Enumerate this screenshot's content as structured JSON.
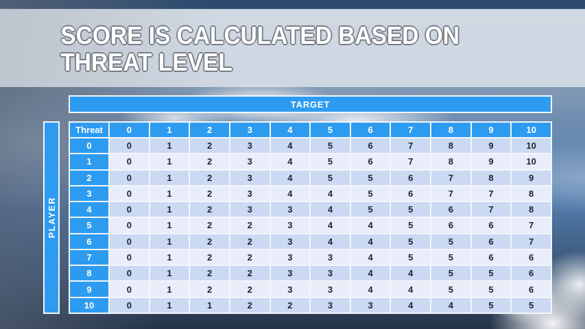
{
  "slide": {
    "title_line1": "SCORE IS CALCULATED BASED ON",
    "title_line2": "THREAT LEVEL"
  },
  "matrix": {
    "target_label": "TARGET",
    "player_label": "PLAYER",
    "corner_label": "Threat",
    "column_headers": [
      "0",
      "1",
      "2",
      "3",
      "4",
      "5",
      "6",
      "7",
      "8",
      "9",
      "10"
    ],
    "rows": [
      {
        "threat": "0",
        "values": [
          0,
          1,
          2,
          3,
          4,
          5,
          6,
          7,
          8,
          9,
          10
        ]
      },
      {
        "threat": "1",
        "values": [
          0,
          1,
          2,
          3,
          4,
          5,
          6,
          7,
          8,
          9,
          10
        ]
      },
      {
        "threat": "2",
        "values": [
          0,
          1,
          2,
          3,
          4,
          5,
          5,
          6,
          7,
          8,
          9
        ]
      },
      {
        "threat": "3",
        "values": [
          0,
          1,
          2,
          3,
          4,
          4,
          5,
          6,
          7,
          7,
          8
        ]
      },
      {
        "threat": "4",
        "values": [
          0,
          1,
          2,
          3,
          3,
          4,
          5,
          5,
          6,
          7,
          8
        ]
      },
      {
        "threat": "5",
        "values": [
          0,
          1,
          2,
          2,
          3,
          4,
          4,
          5,
          6,
          6,
          7
        ]
      },
      {
        "threat": "6",
        "values": [
          0,
          1,
          2,
          2,
          3,
          4,
          4,
          5,
          5,
          6,
          7
        ]
      },
      {
        "threat": "7",
        "values": [
          0,
          1,
          2,
          2,
          3,
          3,
          4,
          5,
          5,
          6,
          6
        ]
      },
      {
        "threat": "8",
        "values": [
          0,
          1,
          2,
          2,
          3,
          3,
          4,
          4,
          5,
          5,
          6
        ]
      },
      {
        "threat": "9",
        "values": [
          0,
          1,
          2,
          2,
          3,
          3,
          4,
          4,
          5,
          5,
          6
        ]
      },
      {
        "threat": "10",
        "values": [
          0,
          1,
          1,
          2,
          2,
          3,
          3,
          4,
          4,
          5,
          5
        ]
      }
    ]
  },
  "colors": {
    "accent_blue": "#2D9BF0",
    "row_band_dark": "#CBD9F2",
    "row_band_light": "#E8EDF9",
    "title_text": "#FFFFFF",
    "title_outline": "#767D85"
  }
}
